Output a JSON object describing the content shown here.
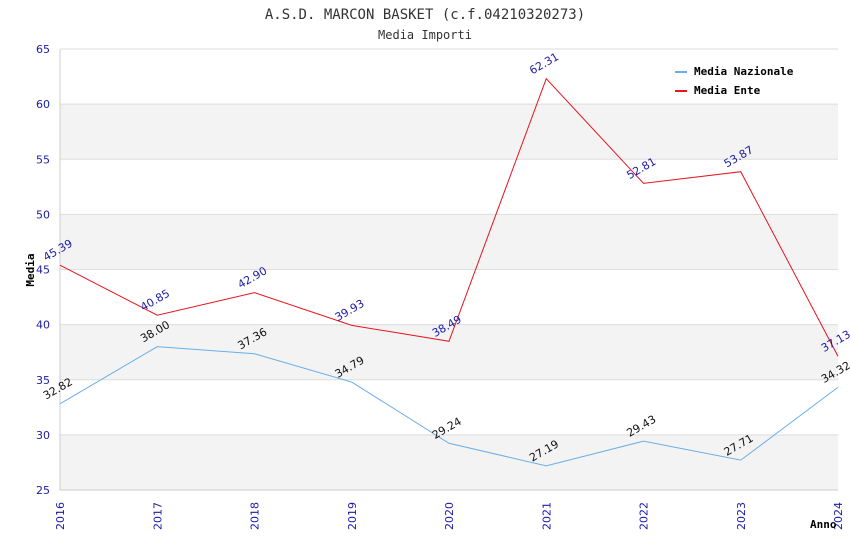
{
  "chart_data": {
    "type": "line",
    "title": "A.S.D. MARCON BASKET (c.f.04210320273)",
    "subtitle": "Media Importi",
    "xlabel": "Anno",
    "ylabel": "Media",
    "x": [
      "2016",
      "2017",
      "2018",
      "2019",
      "2020",
      "2021",
      "2022",
      "2023",
      "2024"
    ],
    "ylim": [
      25,
      65
    ],
    "yticks": [
      25,
      30,
      35,
      40,
      45,
      50,
      55,
      60,
      65
    ],
    "grid": "horizontal alternating bands",
    "legend_position": "top-right",
    "series": [
      {
        "name": "Media Nazionale",
        "color": "#6aaee8",
        "values": [
          32.82,
          38.0,
          37.36,
          34.79,
          29.24,
          27.19,
          29.43,
          27.71,
          34.32
        ],
        "labels": [
          "32.82",
          "38.00",
          "37.36",
          "34.79",
          "29.24",
          "27.19",
          "29.43",
          "27.71",
          "34.32"
        ]
      },
      {
        "name": "Media Ente",
        "color": "#e8141e",
        "values": [
          45.39,
          40.85,
          42.9,
          39.93,
          38.49,
          62.31,
          52.81,
          53.87,
          37.13
        ],
        "labels": [
          "45.39",
          "40.85",
          "42.90",
          "39.93",
          "38.49",
          "62.31",
          "52.81",
          "53.87",
          "37.13"
        ]
      }
    ]
  }
}
